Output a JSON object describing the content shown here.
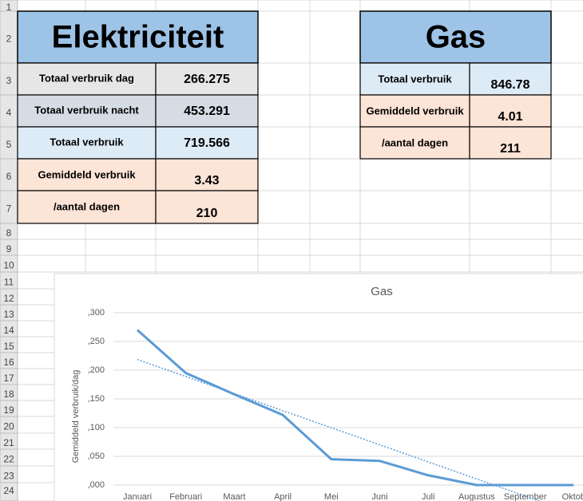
{
  "row_numbers": [
    1,
    2,
    3,
    4,
    5,
    6,
    7,
    8,
    9,
    10,
    11,
    12,
    13,
    14,
    15,
    16,
    17,
    18,
    19,
    20,
    21,
    22,
    23,
    24
  ],
  "elektriciteit": {
    "title": "Elektriciteit",
    "rows": [
      [
        "Totaal verbruik dag",
        "266.275"
      ],
      [
        "Totaal verbruik nacht",
        "453.291"
      ],
      [
        "Totaal verbruik",
        "719.566"
      ],
      [
        "Gemiddeld verbruik",
        "3.43"
      ],
      [
        "/aantal dagen",
        "210"
      ]
    ]
  },
  "gas": {
    "title": "Gas",
    "rows": [
      [
        "Totaal verbruik",
        "846.78"
      ],
      [
        "Gemiddeld verbruik",
        "4.01"
      ],
      [
        "/aantal dagen",
        "211"
      ]
    ]
  },
  "chart_data": {
    "type": "line",
    "title": "Gas",
    "y_label": "Gemiddeld verbruik/dag",
    "categories": [
      "Januari",
      "Februari",
      "Maart",
      "April",
      "Mei",
      "Juni",
      "Juli",
      "Augustus",
      "September",
      "Oktob"
    ],
    "values": [
      0.27,
      0.195,
      0.158,
      0.122,
      0.045,
      0.042,
      0.017,
      0,
      0,
      0
    ],
    "color": "#5b9bd5",
    "trendline": "linear",
    "ylim": [
      0,
      0.3
    ],
    "yticks": [
      {
        "value": 0,
        "label": ",000"
      },
      {
        "value": 0.05,
        "label": ",050"
      },
      {
        "value": 0.1,
        "label": ",100"
      },
      {
        "value": 0.15,
        "label": ",150"
      },
      {
        "value": 0.2,
        "label": ",200"
      },
      {
        "value": 0.25,
        "label": ",250"
      },
      {
        "value": 0.3,
        "label": ",300"
      }
    ],
    "grid": true
  }
}
